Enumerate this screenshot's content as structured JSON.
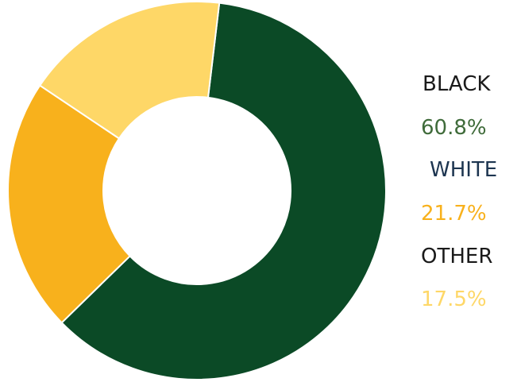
{
  "chart_data": {
    "type": "pie",
    "donut": true,
    "categories": [
      "BLACK",
      "WHITE",
      "OTHER"
    ],
    "values": [
      60.8,
      21.7,
      17.5
    ],
    "value_labels": [
      "60.8%",
      "21.7%",
      "17.5%"
    ],
    "colors": [
      "#0b4a26",
      "#f8b11c",
      "#fed767"
    ],
    "name_colors": [
      "#1a1a1a",
      "#1d3550",
      "#1a1a1a"
    ],
    "start_angle_deg": 6.8,
    "title": "",
    "legend_position": "right"
  }
}
